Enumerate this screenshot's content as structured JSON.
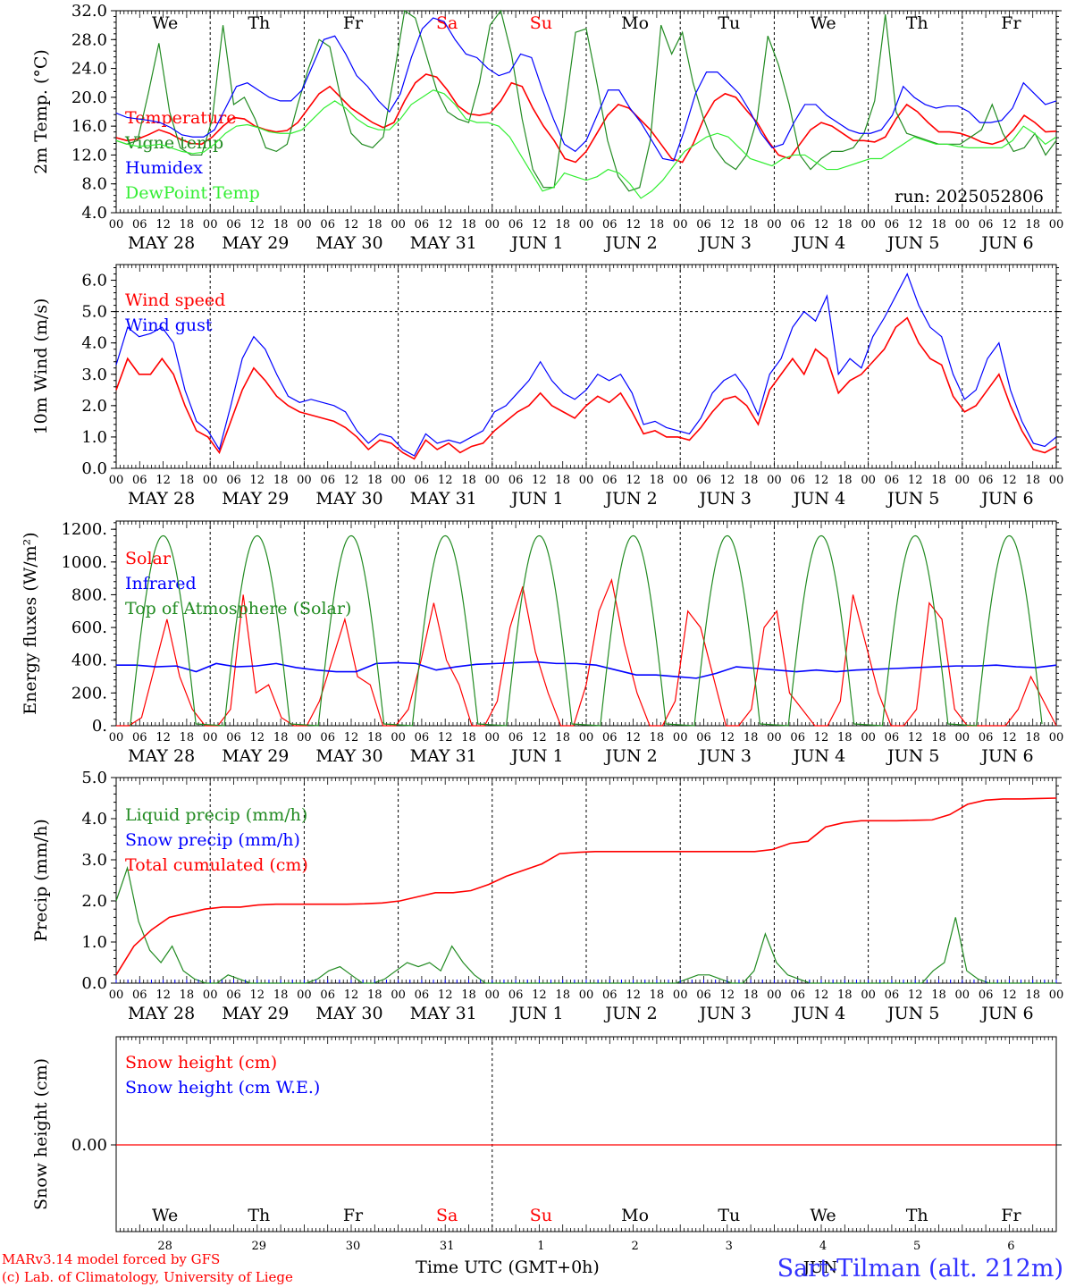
{
  "days": [
    "We",
    "Th",
    "Fr",
    "Sa",
    "Su",
    "Mo",
    "Tu",
    "We",
    "Th",
    "Fr"
  ],
  "weekend_days": [
    "Sa",
    "Su"
  ],
  "day_colors": {
    "normal": "#000000",
    "weekend": "#ff0000"
  },
  "date_labels": [
    "MAY 28",
    "MAY 29",
    "MAY 30",
    "MAY 31",
    "JUN  1",
    "JUN  2",
    "JUN  3",
    "JUN  4",
    "JUN  5",
    "JUN  6"
  ],
  "hour_ticks": [
    "00",
    "06",
    "12",
    "18"
  ],
  "final_hour_tick": "00",
  "date_numbers": [
    "28",
    "29",
    "30",
    "31",
    "1",
    "2",
    "3",
    "4",
    "5",
    "6"
  ],
  "month_label": "JUN",
  "time_axis_label": "Time UTC (GMT+0h)",
  "run_label": "run: 2025052806",
  "station": "Sart-Tilman (alt. 212m)",
  "credits": [
    "MARv3.14 model forced by GFS",
    "(c) Lab. of Climatology, University of Liege"
  ],
  "colors": {
    "red": "#ff0000",
    "green": "#228b22",
    "blue": "#0000ff",
    "lightgreen": "#33ee33"
  },
  "chart_data": [
    {
      "type": "line",
      "ylabel": "2m Temp. (°C)",
      "ylim": [
        4,
        32
      ],
      "yticks": [
        "4.0",
        "8.0",
        "12.0",
        "16.0",
        "20.0",
        "24.0",
        "28.0",
        "32.0"
      ],
      "x_unit": "hours from MAY 28 00 UTC, 3-hourly",
      "series": [
        {
          "name": "Temperature",
          "color": "red",
          "values": [
            14.4,
            14.0,
            14.2,
            14.8,
            15.5,
            15.0,
            14.2,
            13.6,
            13.5,
            14.5,
            16.0,
            17.2,
            17.0,
            16.0,
            15.5,
            15.2,
            15.4,
            16.5,
            18.5,
            20.5,
            21.5,
            20.0,
            18.5,
            17.5,
            16.5,
            15.8,
            16.5,
            19.5,
            22.0,
            23.2,
            22.8,
            21.0,
            18.8,
            17.7,
            17.5,
            17.8,
            19.5,
            22.0,
            21.5,
            18.5,
            16.0,
            14.0,
            11.5,
            11.0,
            12.5,
            15.0,
            17.5,
            19.0,
            18.5,
            17.0,
            15.5,
            13.5,
            11.5,
            11.0,
            13.5,
            17.0,
            19.5,
            20.5,
            20.0,
            18.2,
            16.5,
            14.0,
            12.0,
            11.5,
            13.5,
            15.5,
            16.5,
            16.0,
            15.0,
            14.0,
            14.0,
            13.8,
            14.5,
            17.0,
            19.0,
            18.0,
            16.5,
            15.2,
            15.2,
            15.0,
            14.5,
            13.8,
            13.5,
            14.0,
            15.5,
            17.5,
            16.5,
            15.2,
            15.3
          ]
        },
        {
          "name": "Vigne temp",
          "color": "green",
          "values": [
            14.0,
            13.5,
            14.0,
            20.5,
            27.5,
            18.0,
            13.0,
            12.0,
            12.0,
            17.0,
            30.0,
            19.0,
            20.0,
            17.0,
            13.0,
            12.5,
            13.5,
            19.0,
            24.0,
            28.0,
            27.0,
            20.0,
            15.0,
            13.5,
            13.0,
            14.5,
            23.0,
            32.0,
            31.0,
            26.0,
            21.0,
            18.0,
            17.0,
            16.5,
            22.0,
            30.0,
            32.0,
            26.0,
            17.0,
            10.0,
            7.5,
            7.5,
            18.0,
            29.0,
            29.5,
            22.0,
            14.0,
            9.0,
            7.0,
            7.5,
            14.0,
            30.0,
            26.0,
            29.0,
            22.0,
            17.0,
            13.0,
            11.0,
            10.0,
            12.0,
            17.0,
            28.5,
            24.5,
            19.0,
            12.0,
            10.0,
            11.5,
            12.5,
            12.5,
            13.0,
            15.0,
            19.5,
            31.5,
            18.0,
            15.0,
            14.5,
            14.0,
            13.5,
            13.5,
            13.5,
            14.5,
            15.5,
            19.0,
            15.0,
            12.5,
            13.0,
            15.0,
            12.0,
            14.0
          ]
        },
        {
          "name": "Humidex",
          "color": "blue",
          "values": [
            17.8,
            17.2,
            17.0,
            16.8,
            16.5,
            15.8,
            14.8,
            14.5,
            14.5,
            15.5,
            18.5,
            21.5,
            22.0,
            21.0,
            20.0,
            19.5,
            19.5,
            21.0,
            24.5,
            28.0,
            28.5,
            26.0,
            23.0,
            21.5,
            19.5,
            18.0,
            20.5,
            25.5,
            29.5,
            31.0,
            30.5,
            28.0,
            26.0,
            25.5,
            24.0,
            23.0,
            23.5,
            26.0,
            25.5,
            21.0,
            17.0,
            13.5,
            12.5,
            14.0,
            17.5,
            21.0,
            21.0,
            18.5,
            16.5,
            14.0,
            11.5,
            11.2,
            15.5,
            20.5,
            23.5,
            23.5,
            22.0,
            20.5,
            18.0,
            15.0,
            13.0,
            13.5,
            16.5,
            19.0,
            19.0,
            17.5,
            16.5,
            15.5,
            15.0,
            15.0,
            15.5,
            17.5,
            21.5,
            20.0,
            19.0,
            18.5,
            18.8,
            18.8,
            18.0,
            16.5,
            16.5,
            16.8,
            18.5,
            22.0,
            20.5,
            19.0,
            19.5
          ]
        },
        {
          "name": "DewPoint Temp",
          "color": "lightgreen",
          "values": [
            14.0,
            13.5,
            13.2,
            13.3,
            13.5,
            13.0,
            12.5,
            12.2,
            12.4,
            13.5,
            15.0,
            16.0,
            16.2,
            15.8,
            15.2,
            15.0,
            15.0,
            15.5,
            17.0,
            18.5,
            19.5,
            18.5,
            17.0,
            16.0,
            15.5,
            15.5,
            17.0,
            19.0,
            20.0,
            21.0,
            20.5,
            19.0,
            17.0,
            16.5,
            16.5,
            16.0,
            14.5,
            12.0,
            9.5,
            7.0,
            7.5,
            9.5,
            9.0,
            8.5,
            9.0,
            10.0,
            9.5,
            8.0,
            6.0,
            7.0,
            8.5,
            10.5,
            12.5,
            13.5,
            14.5,
            15.0,
            14.5,
            13.0,
            11.5,
            11.0,
            10.5,
            11.5,
            12.0,
            12.0,
            11.0,
            10.0,
            10.0,
            10.5,
            11.0,
            11.5,
            11.5,
            12.5,
            13.5,
            14.5,
            14.0,
            13.5,
            13.5,
            13.2,
            13.0,
            13.0,
            13.0,
            13.0,
            14.0,
            16.0,
            15.0,
            13.5,
            14.5
          ]
        }
      ]
    },
    {
      "type": "line",
      "ylabel": "10m Wind (m/s)",
      "ylim": [
        0,
        6.5
      ],
      "yticks": [
        "0.0",
        "1.0",
        "2.0",
        "3.0",
        "4.0",
        "5.0",
        "6.0"
      ],
      "reference_line": 5.0,
      "series": [
        {
          "name": "Wind speed",
          "color": "red",
          "values": [
            2.5,
            3.5,
            3.0,
            3.0,
            3.5,
            3.0,
            2.0,
            1.2,
            1.0,
            0.5,
            1.5,
            2.5,
            3.2,
            2.8,
            2.3,
            2.0,
            1.8,
            1.7,
            1.6,
            1.5,
            1.3,
            1.0,
            0.6,
            0.9,
            0.8,
            0.5,
            0.3,
            0.9,
            0.6,
            0.8,
            0.5,
            0.7,
            0.8,
            1.2,
            1.5,
            1.8,
            2.0,
            2.4,
            2.0,
            1.8,
            1.6,
            2.0,
            2.3,
            2.1,
            2.4,
            1.8,
            1.1,
            1.2,
            1.0,
            1.0,
            0.9,
            1.3,
            1.8,
            2.2,
            2.3,
            2.0,
            1.4,
            2.5,
            3.0,
            3.5,
            3.0,
            3.8,
            3.5,
            2.4,
            2.8,
            3.0,
            3.4,
            3.8,
            4.5,
            4.8,
            4.0,
            3.5,
            3.3,
            2.3,
            1.8,
            2.0,
            2.5,
            3.0,
            2.0,
            1.2,
            0.6,
            0.5,
            0.7
          ]
        },
        {
          "name": "Wind gust",
          "color": "blue",
          "values": [
            3.3,
            4.5,
            4.2,
            4.3,
            4.5,
            4.0,
            2.5,
            1.5,
            1.2,
            0.6,
            2.0,
            3.5,
            4.2,
            3.8,
            3.0,
            2.3,
            2.1,
            2.2,
            2.1,
            2.0,
            1.8,
            1.2,
            0.8,
            1.1,
            1.0,
            0.6,
            0.4,
            1.1,
            0.8,
            0.9,
            0.8,
            1.0,
            1.2,
            1.8,
            2.0,
            2.4,
            2.8,
            3.4,
            2.8,
            2.4,
            2.2,
            2.5,
            3.0,
            2.8,
            3.0,
            2.4,
            1.4,
            1.5,
            1.3,
            1.2,
            1.1,
            1.6,
            2.4,
            2.8,
            3.0,
            2.5,
            1.7,
            3.0,
            3.5,
            4.5,
            5.0,
            4.7,
            5.5,
            3.0,
            3.5,
            3.2,
            4.2,
            4.8,
            5.5,
            6.2,
            5.2,
            4.5,
            4.2,
            3.0,
            2.2,
            2.5,
            3.5,
            4.0,
            2.5,
            1.5,
            0.8,
            0.7,
            1.0
          ]
        }
      ]
    },
    {
      "type": "line",
      "ylabel": "Energy fluxes (W/m²)",
      "ylim": [
        0,
        1250
      ],
      "yticks": [
        "0.",
        "200.",
        "400.",
        "600.",
        "800.",
        "1000.",
        "1200."
      ],
      "series": [
        {
          "name": "Solar",
          "color": "red",
          "values": [
            0,
            0,
            50,
            350,
            650,
            300,
            100,
            0,
            0,
            100,
            800,
            200,
            250,
            50,
            0,
            0,
            150,
            400,
            650,
            300,
            250,
            0,
            0,
            100,
            400,
            750,
            400,
            250,
            0,
            0,
            150,
            600,
            850,
            450,
            200,
            0,
            0,
            250,
            700,
            890,
            500,
            200,
            0,
            0,
            150,
            700,
            600,
            300,
            0,
            0,
            100,
            600,
            700,
            200,
            100,
            0,
            0,
            150,
            800,
            500,
            200,
            0,
            0,
            100,
            750,
            650,
            100,
            0,
            0,
            0,
            0,
            100,
            300,
            150,
            0
          ]
        },
        {
          "name": "Infrared",
          "color": "blue",
          "values": [
            370,
            370,
            360,
            365,
            330,
            380,
            360,
            365,
            380,
            355,
            340,
            330,
            330,
            380,
            385,
            380,
            340,
            360,
            375,
            380,
            385,
            390,
            380,
            380,
            370,
            340,
            310,
            310,
            300,
            290,
            320,
            360,
            350,
            340,
            330,
            340,
            330,
            340,
            345,
            350,
            355,
            360,
            365,
            365,
            370,
            360,
            355,
            370
          ]
        },
        {
          "name": "Top of Atmosphere (Solar)",
          "color": "green",
          "values": []
        }
      ]
    },
    {
      "type": "line",
      "ylabel": "Precip (mm/h)",
      "ylim": [
        0,
        5
      ],
      "yticks": [
        "0.0",
        "1.0",
        "2.0",
        "3.0",
        "4.0",
        "5.0"
      ],
      "series": [
        {
          "name": "Liquid precip (mm/h)",
          "color": "green",
          "values": [
            2.0,
            2.8,
            1.5,
            0.8,
            0.5,
            0.9,
            0.3,
            0.1,
            0.0,
            0.0,
            0.2,
            0.1,
            0.0,
            0.0,
            0.0,
            0.0,
            0.0,
            0.0,
            0.1,
            0.3,
            0.4,
            0.2,
            0.0,
            0.0,
            0.1,
            0.3,
            0.5,
            0.4,
            0.5,
            0.3,
            0.9,
            0.5,
            0.2,
            0.0,
            0.0,
            0.0,
            0.0,
            0.0,
            0.0,
            0.0,
            0.0,
            0.0,
            0.0,
            0.0,
            0.0,
            0.0,
            0.0,
            0.0,
            0.0,
            0.0,
            0.0,
            0.1,
            0.2,
            0.2,
            0.1,
            0.0,
            0.0,
            0.3,
            1.2,
            0.5,
            0.2,
            0.1,
            0.0,
            0.0,
            0.0,
            0.0,
            0.0,
            0.0,
            0.0,
            0.0,
            0.0,
            0.0,
            0.0,
            0.3,
            0.5,
            1.6,
            0.3,
            0.1,
            0.0,
            0.0,
            0.0,
            0.0,
            0.0,
            0.0,
            0.0
          ]
        },
        {
          "name": "Snow precip (mm/h)",
          "color": "blue",
          "values": []
        },
        {
          "name": "Total cumulated (cm)",
          "color": "red",
          "values": [
            0.2,
            0.9,
            1.3,
            1.6,
            1.7,
            1.8,
            1.85,
            1.85,
            1.9,
            1.92,
            1.92,
            1.92,
            1.92,
            1.92,
            1.93,
            1.95,
            2.0,
            2.1,
            2.2,
            2.2,
            2.25,
            2.4,
            2.6,
            2.75,
            2.9,
            3.15,
            3.18,
            3.2,
            3.2,
            3.2,
            3.2,
            3.2,
            3.2,
            3.2,
            3.2,
            3.2,
            3.2,
            3.25,
            3.4,
            3.45,
            3.8,
            3.9,
            3.95,
            3.95,
            3.95,
            3.96,
            3.97,
            4.1,
            4.35,
            4.45,
            4.48,
            4.48,
            4.49,
            4.5
          ]
        }
      ]
    },
    {
      "type": "line",
      "ylabel": "Snow height (cm)",
      "yticks": [
        "0.00"
      ],
      "series": [
        {
          "name": "Snow height (cm)",
          "color": "red",
          "values": [
            0,
            0
          ]
        },
        {
          "name": "Snow height (cm W.E.)",
          "color": "blue",
          "values": []
        }
      ]
    }
  ]
}
